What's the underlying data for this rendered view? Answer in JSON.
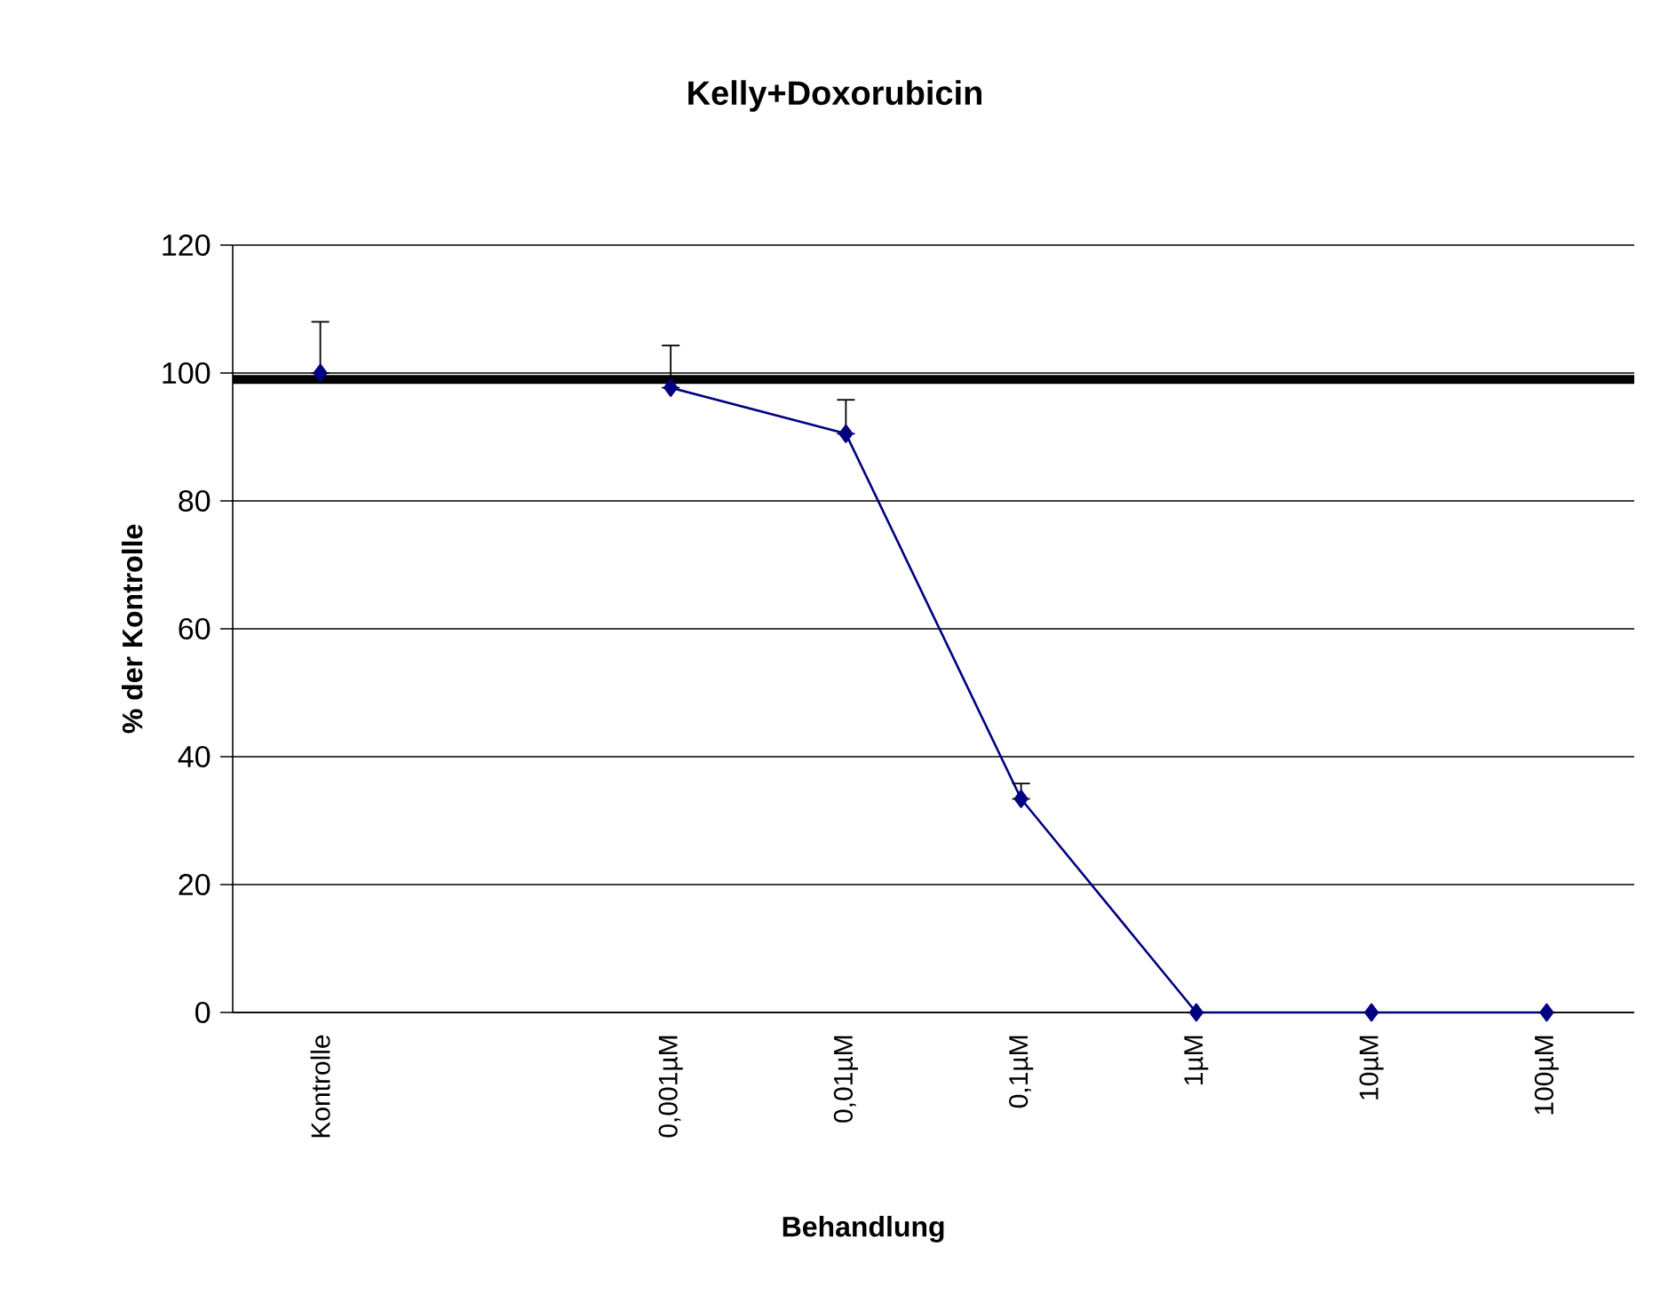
{
  "chart_data": {
    "type": "line",
    "title": "Kelly+Doxorubicin",
    "xlabel": "Behandlung",
    "ylabel": "% der Kontrolle",
    "categories": [
      "Kontrolle",
      null,
      "0,001µM",
      "0,01µM",
      "0,1µM",
      "1µM",
      "10µM",
      "100µM"
    ],
    "series": [
      {
        "color": "#000080",
        "values": [
          100,
          null,
          97.7,
          90.5,
          33.4,
          0,
          0,
          0
        ],
        "errors": [
          [
            100,
            108
          ],
          null,
          [
            97.7,
            104.3
          ],
          [
            90.5,
            95.8
          ],
          [
            33.4,
            35.8
          ],
          null,
          null,
          null
        ]
      }
    ],
    "ylim": [
      0,
      120
    ],
    "yticks": [
      0,
      20,
      40,
      60,
      80,
      100,
      120
    ],
    "grid": "y",
    "marker": "diamond",
    "line_style": "solid",
    "ref_lines": [
      {
        "axis": "y",
        "value": 99,
        "color": "#000000"
      }
    ]
  }
}
